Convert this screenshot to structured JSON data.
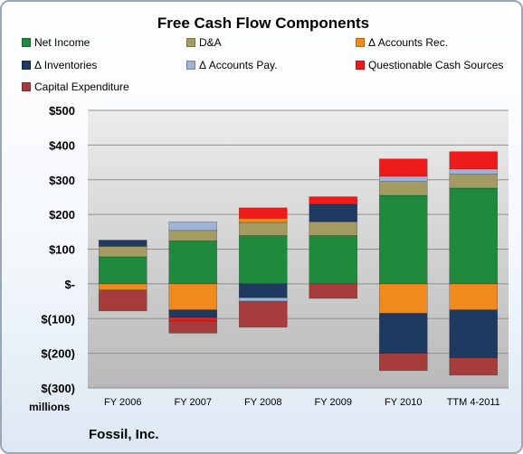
{
  "chart_data": {
    "type": "bar",
    "stacked": true,
    "title": "Free Cash Flow Components",
    "categories": [
      "FY 2006",
      "FY 2007",
      "FY 2008",
      "FY 2009",
      "FY 2010",
      "TTM 4-2011"
    ],
    "series": [
      {
        "name": "Net Income",
        "color": "#1f8a3c",
        "values": [
          78,
          124,
          139,
          139,
          255,
          276
        ]
      },
      {
        "name": "D&A",
        "color": "#a49b62",
        "values": [
          30,
          30,
          38,
          40,
          40,
          40
        ]
      },
      {
        "name": "Δ Accounts Rec.",
        "color": "#f08a1c",
        "values": [
          -18,
          -75,
          12,
          0,
          -85,
          -75
        ]
      },
      {
        "name": "Δ Inventories",
        "color": "#1f3a60",
        "values": [
          18,
          -22,
          -40,
          50,
          -115,
          -138
        ]
      },
      {
        "name": "Δ Accounts Pay.",
        "color": "#9fb3d6",
        "values": [
          0,
          25,
          -10,
          0,
          15,
          15
        ]
      },
      {
        "name": "Questionable Cash Sources",
        "color": "#ee1b1b",
        "values": [
          0,
          -10,
          30,
          22,
          50,
          50
        ]
      },
      {
        "name": "Capital Expenditure",
        "color": "#a63c3c",
        "values": [
          -60,
          -35,
          -75,
          -42,
          -50,
          -50
        ]
      }
    ],
    "yaxis": {
      "min": -300,
      "max": 500,
      "step": 100,
      "ticks": [
        "$(300)",
        "$(200)",
        "$(100)",
        "$-",
        "$100",
        "$200",
        "$300",
        "$400",
        "$500"
      ]
    },
    "ylabel": "millions",
    "grid": true,
    "legend": "top"
  },
  "footer": "Fossil, Inc."
}
